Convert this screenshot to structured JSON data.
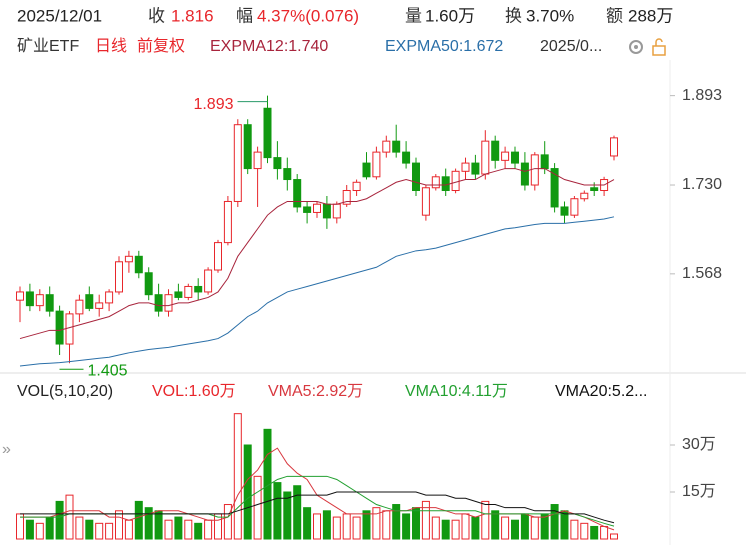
{
  "header": {
    "date": "2025/12/01",
    "items": [
      {
        "label": "收",
        "value": "1.816"
      },
      {
        "label": "幅",
        "value": "4.37%(0.076)"
      },
      {
        "label": "量",
        "value": "1.60万"
      },
      {
        "label": "换",
        "value": "3.70%"
      },
      {
        "label": "额",
        "value": "288万"
      }
    ]
  },
  "chart_data": [
    {
      "type": "candlestick",
      "title": "矿业ETF",
      "period": "日线",
      "adjust": "前复权",
      "date_range": "2025/0...",
      "up_color": "#e8262b",
      "down_color": "#119911",
      "open": [
        1.52,
        1.535,
        1.51,
        1.53,
        1.5,
        1.44,
        1.495,
        1.53,
        1.505,
        1.515,
        1.535,
        1.59,
        1.6,
        1.57,
        1.53,
        1.5,
        1.535,
        1.525,
        1.545,
        1.535,
        1.575,
        1.625,
        1.7,
        1.84,
        1.76,
        1.87,
        1.78,
        1.76,
        1.74,
        1.69,
        1.68,
        1.695,
        1.67,
        1.695,
        1.72,
        1.77,
        1.745,
        1.79,
        1.81,
        1.79,
        1.77,
        1.675,
        1.725,
        1.745,
        1.72,
        1.755,
        1.77,
        1.75,
        1.81,
        1.775,
        1.79,
        1.77,
        1.73,
        1.785,
        1.76,
        1.69,
        1.675,
        1.705,
        1.725,
        1.72,
        1.783
      ],
      "high": [
        1.545,
        1.55,
        1.54,
        1.545,
        1.51,
        1.5,
        1.53,
        1.545,
        1.53,
        1.54,
        1.6,
        1.61,
        1.61,
        1.58,
        1.55,
        1.54,
        1.55,
        1.55,
        1.56,
        1.58,
        1.63,
        1.71,
        1.85,
        1.85,
        1.8,
        1.893,
        1.81,
        1.78,
        1.75,
        1.7,
        1.7,
        1.71,
        1.7,
        1.73,
        1.74,
        1.79,
        1.8,
        1.82,
        1.84,
        1.81,
        1.78,
        1.73,
        1.75,
        1.76,
        1.76,
        1.78,
        1.785,
        1.83,
        1.82,
        1.8,
        1.8,
        1.79,
        1.79,
        1.81,
        1.77,
        1.7,
        1.71,
        1.72,
        1.735,
        1.745,
        1.82
      ],
      "low": [
        1.48,
        1.5,
        1.5,
        1.49,
        1.42,
        1.405,
        1.48,
        1.5,
        1.49,
        1.5,
        1.53,
        1.57,
        1.56,
        1.52,
        1.49,
        1.49,
        1.52,
        1.52,
        1.52,
        1.53,
        1.57,
        1.62,
        1.69,
        1.75,
        1.69,
        1.77,
        1.74,
        1.72,
        1.68,
        1.66,
        1.67,
        1.65,
        1.66,
        1.69,
        1.71,
        1.74,
        1.74,
        1.78,
        1.78,
        1.76,
        1.71,
        1.665,
        1.72,
        1.71,
        1.715,
        1.74,
        1.74,
        1.74,
        1.76,
        1.76,
        1.76,
        1.72,
        1.72,
        1.75,
        1.68,
        1.66,
        1.67,
        1.7,
        1.71,
        1.71,
        1.775
      ],
      "close": [
        1.535,
        1.51,
        1.53,
        1.5,
        1.44,
        1.495,
        1.52,
        1.505,
        1.515,
        1.535,
        1.59,
        1.6,
        1.57,
        1.53,
        1.5,
        1.53,
        1.525,
        1.545,
        1.535,
        1.575,
        1.625,
        1.7,
        1.84,
        1.76,
        1.79,
        1.78,
        1.76,
        1.74,
        1.69,
        1.68,
        1.695,
        1.67,
        1.695,
        1.72,
        1.735,
        1.745,
        1.79,
        1.81,
        1.79,
        1.77,
        1.72,
        1.725,
        1.745,
        1.72,
        1.755,
        1.77,
        1.75,
        1.81,
        1.775,
        1.79,
        1.77,
        1.73,
        1.785,
        1.76,
        1.69,
        1.675,
        1.705,
        1.715,
        1.72,
        1.74,
        1.816
      ],
      "ylim": [
        1.389,
        1.958
      ],
      "yticks": [
        1.568,
        {
          "value": 1.73,
          "label": "1.730"
        },
        1.893
      ],
      "annotations": [
        {
          "text": "1.893"
        },
        {
          "text": "1.405"
        }
      ],
      "series": [
        {
          "name": "EXPMA12:1.740",
          "color": "#a8243c",
          "values": [
            1.45,
            1.455,
            1.46,
            1.465,
            1.465,
            1.47,
            1.475,
            1.48,
            1.485,
            1.49,
            1.5,
            1.51,
            1.515,
            1.515,
            1.51,
            1.51,
            1.515,
            1.515,
            1.52,
            1.525,
            1.535,
            1.56,
            1.6,
            1.625,
            1.65,
            1.675,
            1.69,
            1.7,
            1.7,
            1.7,
            1.7,
            1.695,
            1.695,
            1.7,
            1.7,
            1.705,
            1.715,
            1.725,
            1.735,
            1.74,
            1.735,
            1.73,
            1.73,
            1.73,
            1.735,
            1.74,
            1.74,
            1.75,
            1.755,
            1.76,
            1.76,
            1.755,
            1.76,
            1.76,
            1.75,
            1.74,
            1.735,
            1.73,
            1.73,
            1.73,
            1.74
          ]
        },
        {
          "name": "EXPMA50:1.672",
          "color": "#2a6fa8",
          "values": [
            1.4,
            1.402,
            1.404,
            1.405,
            1.406,
            1.408,
            1.41,
            1.412,
            1.414,
            1.416,
            1.42,
            1.424,
            1.427,
            1.43,
            1.432,
            1.434,
            1.437,
            1.44,
            1.443,
            1.446,
            1.45,
            1.46,
            1.475,
            1.49,
            1.5,
            1.515,
            1.525,
            1.535,
            1.54,
            1.545,
            1.55,
            1.555,
            1.56,
            1.565,
            1.57,
            1.575,
            1.58,
            1.59,
            1.6,
            1.605,
            1.61,
            1.612,
            1.615,
            1.62,
            1.625,
            1.63,
            1.635,
            1.64,
            1.645,
            1.65,
            1.652,
            1.655,
            1.658,
            1.66,
            1.66,
            1.66,
            1.662,
            1.664,
            1.666,
            1.668,
            1.672
          ]
        }
      ]
    },
    {
      "type": "bar",
      "title": "VOL(5,10,20)",
      "label": "VOL:1.60万",
      "label_color": "#e8262b",
      "values": [
        8,
        6,
        5,
        7,
        12,
        14,
        7,
        6,
        5,
        5,
        9,
        6,
        12,
        10,
        9,
        6,
        7,
        6,
        5,
        6,
        8,
        11,
        40,
        30,
        20,
        35,
        18,
        15,
        17,
        10,
        8,
        9,
        7,
        8,
        7,
        9,
        10,
        9,
        11,
        8,
        10,
        12,
        7,
        6,
        6,
        8,
        7,
        12,
        9,
        7,
        6,
        8,
        7,
        8,
        11,
        9,
        6,
        5,
        4,
        4,
        1.6
      ],
      "ylim": [
        0,
        45
      ],
      "yticks": [
        {
          "value": 15,
          "label": "15万"
        },
        {
          "value": 30,
          "label": "30万"
        }
      ],
      "series": [
        {
          "name": "VMA5:2.92万",
          "color": "#d8383f",
          "values": [
            7,
            7,
            7,
            7,
            8,
            9,
            9,
            9,
            9,
            7,
            7,
            6,
            7,
            8,
            9,
            9,
            9,
            8,
            7,
            6,
            6,
            7,
            14,
            19,
            22,
            27,
            29,
            24,
            21,
            19,
            14,
            12,
            10,
            8,
            8,
            8,
            8,
            9,
            9,
            9,
            10,
            10,
            10,
            9,
            8,
            8,
            7,
            8,
            8,
            8,
            8,
            8,
            7,
            7,
            8,
            9,
            8,
            7,
            5.5,
            4,
            2.92
          ]
        },
        {
          "name": "VMA10:4.11万",
          "color": "#22a030",
          "values": [
            7,
            7,
            7,
            7,
            7,
            8,
            8,
            8,
            8,
            8,
            8,
            8,
            8,
            8,
            8,
            8,
            8,
            8,
            8,
            8,
            7,
            7,
            10,
            13,
            15,
            17,
            19,
            20,
            20,
            20,
            20,
            20,
            19,
            17,
            15,
            13,
            11,
            10,
            9,
            9,
            9,
            9,
            9,
            9,
            9,
            9,
            9,
            8,
            8,
            8,
            8,
            8,
            8,
            8,
            8,
            8,
            8,
            7,
            6,
            5,
            4.11
          ]
        },
        {
          "name": "VMA20:5.2...",
          "color": "#111111",
          "values": [
            8,
            8,
            8,
            8,
            8,
            8,
            8,
            8,
            8,
            8,
            8,
            8,
            8,
            8,
            8,
            8,
            8,
            8,
            8,
            8,
            8,
            8,
            9,
            10,
            11,
            12,
            13,
            13,
            14,
            14,
            14,
            14,
            15,
            15,
            15,
            15,
            15,
            15,
            15,
            15,
            15,
            14,
            14,
            14,
            13,
            13,
            12,
            11,
            11,
            10,
            10,
            10,
            9,
            9,
            9,
            8,
            8,
            8,
            7,
            6,
            5.2
          ]
        }
      ]
    }
  ]
}
